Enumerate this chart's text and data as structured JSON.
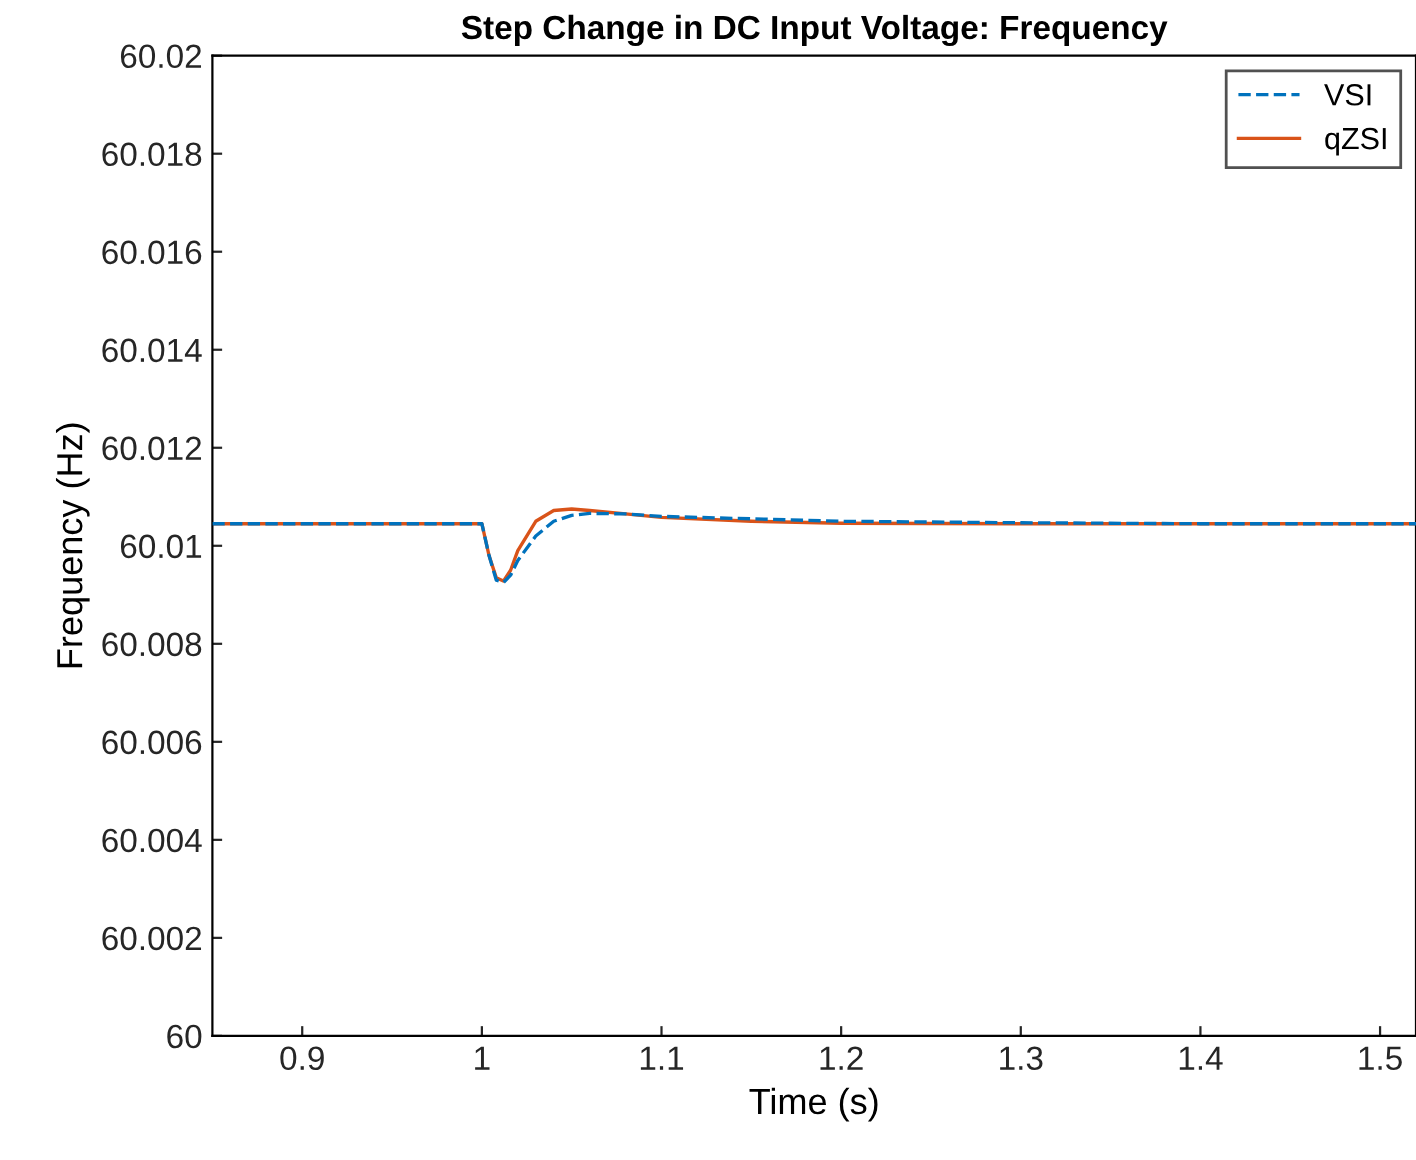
{
  "chart_data": {
    "type": "line",
    "title": "Step Change in DC Input Voltage: Frequency",
    "xlabel": "Time (s)",
    "ylabel": "Frequency (Hz)",
    "xlim": [
      0.85,
      1.52
    ],
    "ylim": [
      60,
      60.02
    ],
    "xticks": [
      0.9,
      1,
      1.1,
      1.2,
      1.3,
      1.4,
      1.5
    ],
    "yticks": [
      60,
      60.002,
      60.004,
      60.006,
      60.008,
      60.01,
      60.012,
      60.014,
      60.016,
      60.018,
      60.02
    ],
    "legend": "top right",
    "grid": false,
    "series": [
      {
        "name": "VSI",
        "color": "#0072bd",
        "line_style": "dashed",
        "x": [
          0.85,
          1.0,
          1.004,
          1.008,
          1.012,
          1.016,
          1.02,
          1.03,
          1.04,
          1.05,
          1.06,
          1.08,
          1.1,
          1.15,
          1.2,
          1.3,
          1.4,
          1.52
        ],
        "values": [
          60.01045,
          60.01045,
          60.0098,
          60.0093,
          60.00925,
          60.0094,
          60.0097,
          60.0102,
          60.0105,
          60.01062,
          60.01066,
          60.01065,
          60.0106,
          60.01055,
          60.0105,
          60.01047,
          60.01045,
          60.01045
        ]
      },
      {
        "name": "qZSI",
        "color": "#d95319",
        "line_style": "solid",
        "x": [
          0.85,
          1.0,
          1.004,
          1.008,
          1.012,
          1.016,
          1.02,
          1.03,
          1.04,
          1.05,
          1.06,
          1.08,
          1.1,
          1.15,
          1.2,
          1.3,
          1.4,
          1.52
        ],
        "values": [
          60.01045,
          60.01045,
          60.0098,
          60.00935,
          60.00928,
          60.0095,
          60.0099,
          60.0105,
          60.01072,
          60.01075,
          60.01072,
          60.01065,
          60.01058,
          60.0105,
          60.01046,
          60.01045,
          60.01045,
          60.01045
        ]
      }
    ]
  }
}
